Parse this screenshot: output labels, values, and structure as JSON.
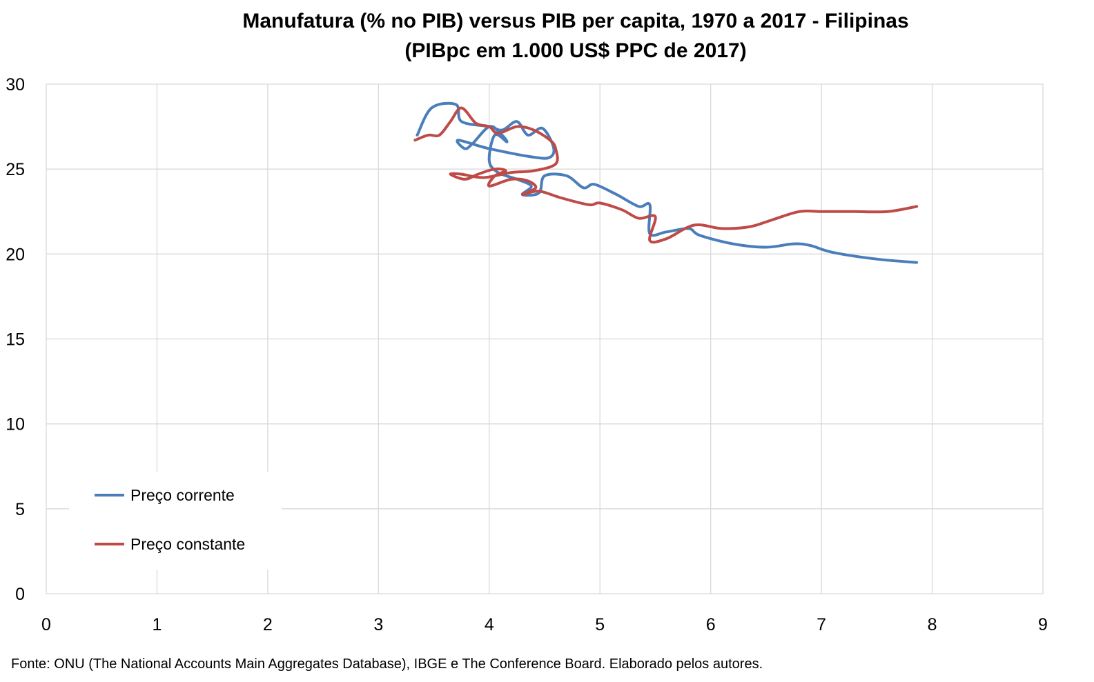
{
  "chart_data": {
    "type": "line",
    "title": "Manufatura (% no PIB) versus PIB per capita, 1970 a 2017 - Filipinas",
    "subtitle": "(PIBpc em 1.000 US$ PPC de 2017)",
    "xlabel": "",
    "ylabel": "",
    "xlim": [
      0,
      9
    ],
    "ylim": [
      0,
      30
    ],
    "x_ticks": [
      "0",
      "1",
      "2",
      "3",
      "4",
      "5",
      "6",
      "7",
      "8",
      "9"
    ],
    "y_ticks": [
      "0",
      "5",
      "10",
      "15",
      "20",
      "25",
      "30"
    ],
    "grid": true,
    "legend_position": "bottom-left",
    "series": [
      {
        "name": "Preço corrente",
        "color": "#4a7ebb",
        "points": [
          [
            3.35,
            27.0
          ],
          [
            3.48,
            28.6
          ],
          [
            3.7,
            28.8
          ],
          [
            3.75,
            27.8
          ],
          [
            4.0,
            27.5
          ],
          [
            4.12,
            27.3
          ],
          [
            4.25,
            27.8
          ],
          [
            4.35,
            27.0
          ],
          [
            4.48,
            27.4
          ],
          [
            4.58,
            26.3
          ],
          [
            4.55,
            25.7
          ],
          [
            4.4,
            25.7
          ],
          [
            4.0,
            26.2
          ],
          [
            3.72,
            26.7
          ],
          [
            3.78,
            26.2
          ],
          [
            3.85,
            26.5
          ],
          [
            4.0,
            27.5
          ],
          [
            4.1,
            27.1
          ],
          [
            4.16,
            26.6
          ],
          [
            4.05,
            27.0
          ],
          [
            4.0,
            25.5
          ],
          [
            4.08,
            24.8
          ],
          [
            4.25,
            24.4
          ],
          [
            4.38,
            24.0
          ],
          [
            4.3,
            23.5
          ],
          [
            4.45,
            23.6
          ],
          [
            4.5,
            24.6
          ],
          [
            4.7,
            24.6
          ],
          [
            4.85,
            23.9
          ],
          [
            4.95,
            24.1
          ],
          [
            5.15,
            23.5
          ],
          [
            5.35,
            22.8
          ],
          [
            5.45,
            22.9
          ],
          [
            5.45,
            21.2
          ],
          [
            5.6,
            21.3
          ],
          [
            5.8,
            21.5
          ],
          [
            5.9,
            21.1
          ],
          [
            6.2,
            20.6
          ],
          [
            6.5,
            20.4
          ],
          [
            6.75,
            20.6
          ],
          [
            6.9,
            20.5
          ],
          [
            7.1,
            20.1
          ],
          [
            7.5,
            19.7
          ],
          [
            7.86,
            19.5
          ]
        ]
      },
      {
        "name": "Preço constante",
        "color": "#be4b48",
        "points": [
          [
            3.33,
            26.7
          ],
          [
            3.45,
            27.0
          ],
          [
            3.55,
            27.0
          ],
          [
            3.65,
            27.8
          ],
          [
            3.75,
            28.6
          ],
          [
            3.88,
            27.7
          ],
          [
            4.0,
            27.5
          ],
          [
            4.08,
            27.1
          ],
          [
            4.25,
            27.5
          ],
          [
            4.4,
            27.3
          ],
          [
            4.55,
            26.7
          ],
          [
            4.6,
            26.2
          ],
          [
            4.6,
            25.3
          ],
          [
            4.4,
            24.9
          ],
          [
            4.2,
            24.8
          ],
          [
            3.95,
            24.5
          ],
          [
            3.75,
            24.7
          ],
          [
            3.65,
            24.7
          ],
          [
            3.78,
            24.4
          ],
          [
            3.9,
            24.7
          ],
          [
            4.05,
            25.0
          ],
          [
            4.15,
            24.9
          ],
          [
            4.05,
            24.6
          ],
          [
            4.0,
            24.0
          ],
          [
            4.2,
            24.4
          ],
          [
            4.35,
            24.3
          ],
          [
            4.42,
            23.9
          ],
          [
            4.3,
            23.5
          ],
          [
            4.45,
            23.7
          ],
          [
            4.65,
            23.3
          ],
          [
            4.9,
            22.9
          ],
          [
            5.0,
            23.0
          ],
          [
            5.2,
            22.6
          ],
          [
            5.35,
            22.1
          ],
          [
            5.5,
            22.2
          ],
          [
            5.45,
            20.8
          ],
          [
            5.6,
            20.9
          ],
          [
            5.85,
            21.7
          ],
          [
            6.1,
            21.5
          ],
          [
            6.35,
            21.6
          ],
          [
            6.55,
            22.0
          ],
          [
            6.8,
            22.5
          ],
          [
            7.0,
            22.5
          ],
          [
            7.3,
            22.5
          ],
          [
            7.6,
            22.5
          ],
          [
            7.86,
            22.8
          ]
        ]
      }
    ]
  },
  "source": "Fonte: ONU (The National Accounts Main Aggregates Database), IBGE e The Conference Board. Elaborado pelos autores."
}
